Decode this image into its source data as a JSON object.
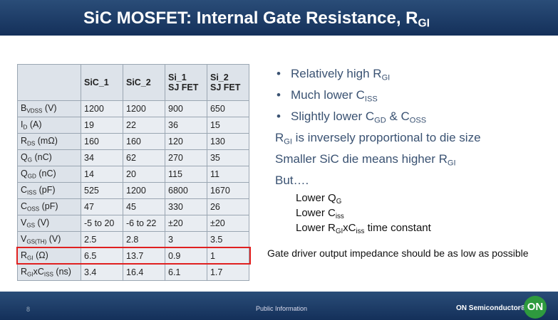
{
  "header": {
    "title": [
      {
        "t": "SiC MOSFET: Internal Gate Resistance, R"
      },
      {
        "s": "GI"
      }
    ]
  },
  "table": {
    "columns": [
      [],
      [
        "SiC_1"
      ],
      [
        "SiC_2"
      ],
      [
        "Si_1",
        "SJ FET"
      ],
      [
        "Si_2",
        "SJ FET"
      ]
    ],
    "rows": [
      {
        "label": [
          {
            "t": "B"
          },
          {
            "s": "VDSS"
          },
          {
            "t": " (V)"
          }
        ],
        "cells": [
          "1200",
          "1200",
          "900",
          "650"
        ]
      },
      {
        "label": [
          {
            "t": "I"
          },
          {
            "s": "D"
          },
          {
            "t": " (A)"
          }
        ],
        "cells": [
          "19",
          "22",
          "36",
          "15"
        ]
      },
      {
        "label": [
          {
            "t": "R"
          },
          {
            "s": "DS"
          },
          {
            "t": " (mΩ)"
          }
        ],
        "cells": [
          "160",
          "160",
          "120",
          "130"
        ]
      },
      {
        "label": [
          {
            "t": "Q"
          },
          {
            "s": "G"
          },
          {
            "t": " (nC)"
          }
        ],
        "cells": [
          "34",
          "62",
          "270",
          "35"
        ]
      },
      {
        "label": [
          {
            "t": "Q"
          },
          {
            "s": "GD"
          },
          {
            "t": " (nC)"
          }
        ],
        "cells": [
          "14",
          "20",
          "115",
          "11"
        ]
      },
      {
        "label": [
          {
            "t": "C"
          },
          {
            "s": "ISS"
          },
          {
            "t": " (pF)"
          }
        ],
        "cells": [
          "525",
          "1200",
          "6800",
          "1670"
        ]
      },
      {
        "label": [
          {
            "t": "C"
          },
          {
            "s": "OSS"
          },
          {
            "t": " (pF)"
          }
        ],
        "cells": [
          "47",
          "45",
          "330",
          "26"
        ]
      },
      {
        "label": [
          {
            "t": "V"
          },
          {
            "s": "GS"
          },
          {
            "t": " (V)"
          }
        ],
        "cells": [
          "-5 to 20",
          "-6 to 22",
          "±20",
          "±20"
        ]
      },
      {
        "label": [
          {
            "t": "V"
          },
          {
            "s": "GS(TH)"
          },
          {
            "t": " (V)"
          }
        ],
        "cells": [
          "2.5",
          "2.8",
          "3",
          "3.5"
        ]
      },
      {
        "label": [
          {
            "t": "R"
          },
          {
            "s": "GI"
          },
          {
            "t": " (Ω)"
          }
        ],
        "cells": [
          "6.5",
          "13.7",
          "0.9",
          "1"
        ],
        "highlighted": true
      },
      {
        "label": [
          {
            "t": "R"
          },
          {
            "s": "GI"
          },
          {
            "t": "xC"
          },
          {
            "s": "ISS"
          },
          {
            "t": " (ns)"
          }
        ],
        "cells": [
          "3.4",
          "16.4",
          "6.1",
          "1.7"
        ]
      }
    ]
  },
  "bullets": [
    [
      {
        "t": "Relatively high R"
      },
      {
        "s": "GI"
      }
    ],
    [
      {
        "t": "Much lower C"
      },
      {
        "s": "ISS"
      }
    ],
    [
      {
        "t": "Slightly lower C"
      },
      {
        "s": "GD"
      },
      {
        "t": " & C"
      },
      {
        "s": "OSS"
      }
    ]
  ],
  "lines": [
    [
      {
        "t": "R"
      },
      {
        "s": "GI"
      },
      {
        "t": " is inversely proportional to die size"
      }
    ],
    [
      {
        "t": "Smaller SiC die means higher R"
      },
      {
        "s": "GI"
      }
    ],
    [
      {
        "t": "But…."
      }
    ]
  ],
  "sublines": [
    [
      {
        "t": "Lower Q"
      },
      {
        "s": "G"
      }
    ],
    [
      {
        "t": "Lower C"
      },
      {
        "s": "iss"
      }
    ],
    [
      {
        "t": "Lower R"
      },
      {
        "s": "GI"
      },
      {
        "t": "xC"
      },
      {
        "s": "iss"
      },
      {
        "t": " time constant"
      }
    ]
  ],
  "note": "Gate driver output impedance should be as low as possible",
  "footer": {
    "page": "8",
    "classification": "Public Information",
    "company": "ON Semiconductor®",
    "logo": "ON"
  }
}
